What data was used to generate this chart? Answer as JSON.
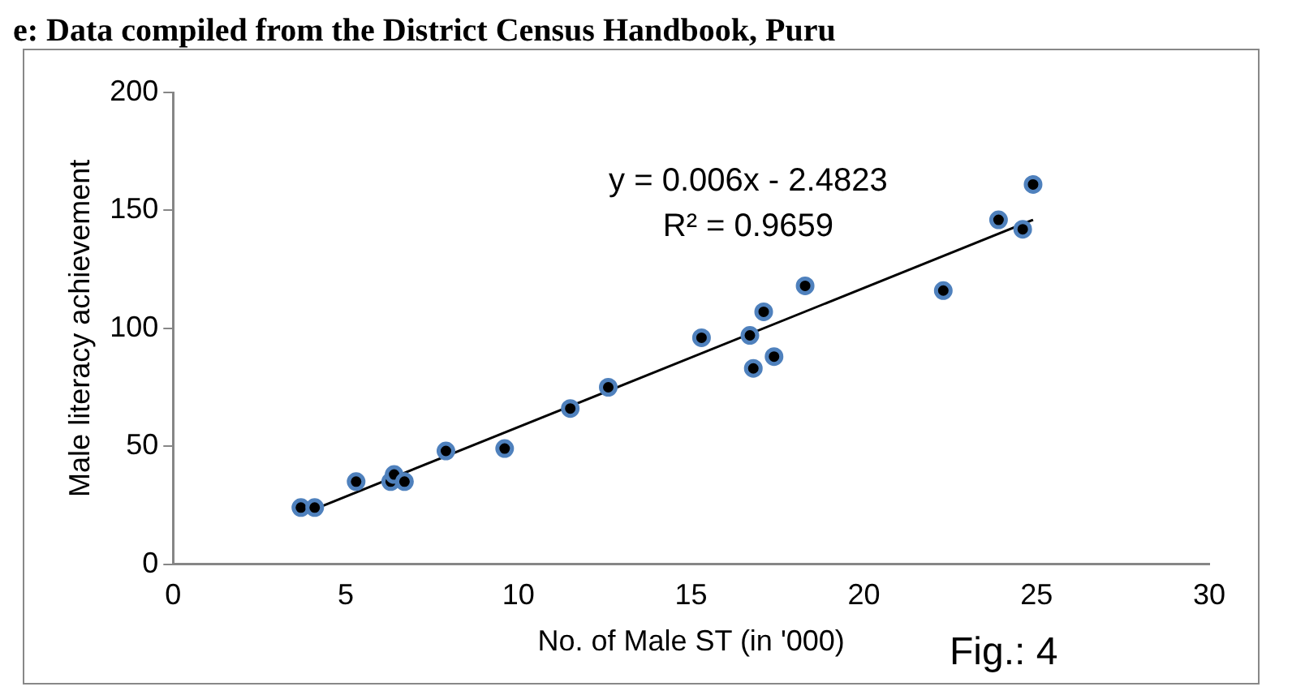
{
  "chart_data": {
    "type": "scatter",
    "title": "e: Data compiled from the District Census Handbook, Puru",
    "xlabel": "No. of Male ST (in '000)",
    "ylabel": "Male literacy achievement",
    "annotations": [
      "y = 0.006x - 2.4823",
      "R² = 0.9659",
      "Fig.: 4"
    ],
    "xlim": [
      0,
      30
    ],
    "xticks": [
      0,
      5,
      10,
      15,
      20,
      25,
      30
    ],
    "ylim": [
      0,
      200
    ],
    "yticks": [
      0,
      50,
      100,
      150,
      200
    ],
    "grid": false,
    "legend": false,
    "marker": "circle",
    "series": [
      {
        "color": "#4f81bd",
        "x": [
          3.7,
          4.1,
          5.3,
          6.3,
          6.4,
          6.7,
          7.9,
          9.6,
          11.5,
          12.6,
          15.3,
          16.7,
          16.8,
          17.1,
          17.4,
          18.3,
          22.3,
          23.9,
          24.6,
          24.9
        ],
        "values": [
          24,
          24,
          35,
          35,
          38,
          35,
          48,
          49,
          66,
          75,
          96,
          97,
          83,
          107,
          88,
          118,
          116,
          146,
          142,
          161
        ]
      },
      {
        "type": "line",
        "color": "#000000",
        "x": [
          3.7,
          24.9
        ],
        "values": [
          21,
          146
        ],
        "marker": "none"
      }
    ]
  }
}
